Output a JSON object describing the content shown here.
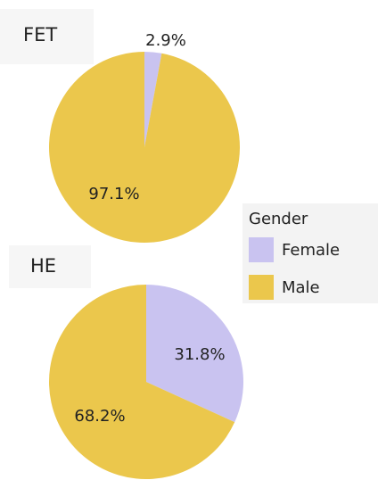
{
  "chart_data": [
    {
      "type": "pie",
      "title": "FET",
      "categories": [
        "Female",
        "Male"
      ],
      "values": [
        2.9,
        97.1
      ],
      "value_labels": [
        "2.9%",
        "97.1%"
      ],
      "colors": [
        "#c9c3f0",
        "#ebc74c"
      ]
    },
    {
      "type": "pie",
      "title": "HE",
      "categories": [
        "Female",
        "Male"
      ],
      "values": [
        31.8,
        68.2
      ],
      "value_labels": [
        "31.8%",
        "68.2%"
      ],
      "colors": [
        "#c9c3f0",
        "#ebc74c"
      ]
    }
  ],
  "legend": {
    "title": "Gender"
  }
}
